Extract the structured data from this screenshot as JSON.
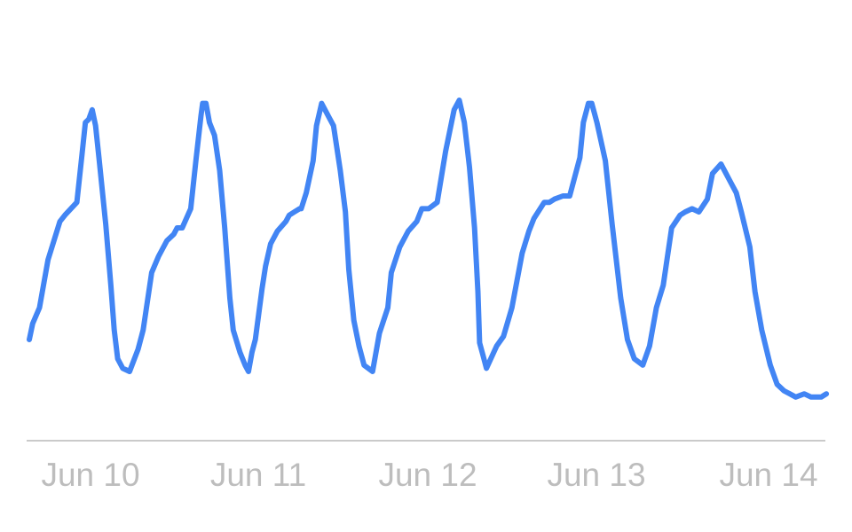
{
  "chart_data": {
    "type": "line",
    "title": "",
    "xlabel": "",
    "ylabel": "",
    "grid": false,
    "legend": "none",
    "x_ticks": [
      "Jun 10",
      "Jun 11",
      "Jun 12",
      "Jun 13",
      "Jun 14"
    ],
    "x_range": [
      0,
      4.7
    ],
    "y_range": [
      0,
      100
    ],
    "series": [
      {
        "color": "#4285f4",
        "x": [
          0.0,
          0.02,
          0.06,
          0.11,
          0.18,
          0.21,
          0.28,
          0.31,
          0.33,
          0.35,
          0.37,
          0.39,
          0.41,
          0.45,
          0.48,
          0.5,
          0.52,
          0.55,
          0.59,
          0.64,
          0.67,
          0.72,
          0.76,
          0.81,
          0.85,
          0.87,
          0.9,
          0.95,
          0.98,
          1.01,
          1.02,
          1.04,
          1.06,
          1.09,
          1.12,
          1.15,
          1.18,
          1.2,
          1.24,
          1.27,
          1.29,
          1.31,
          1.33,
          1.35,
          1.37,
          1.39,
          1.42,
          1.46,
          1.51,
          1.53,
          1.56,
          1.59,
          1.6,
          1.63,
          1.67,
          1.69,
          1.72,
          1.76,
          1.79,
          1.83,
          1.86,
          1.88,
          1.91,
          1.94,
          1.97,
          2.02,
          2.06,
          2.11,
          2.13,
          2.18,
          2.23,
          2.28,
          2.31,
          2.35,
          2.4,
          2.45,
          2.5,
          2.53,
          2.56,
          2.59,
          2.62,
          2.64,
          2.65,
          2.67,
          2.69,
          2.75,
          2.79,
          2.84,
          2.9,
          2.94,
          2.97,
          3.03,
          3.06,
          3.09,
          3.14,
          3.18,
          3.24,
          3.26,
          3.29,
          3.31,
          3.34,
          3.39,
          3.43,
          3.48,
          3.52,
          3.56,
          3.61,
          3.65,
          3.69,
          3.73,
          3.78,
          3.83,
          3.86,
          3.9,
          3.94,
          3.99,
          4.02,
          4.07,
          4.09,
          4.12,
          4.16,
          4.19,
          4.24,
          4.27,
          4.31,
          4.36,
          4.4,
          4.44,
          4.51,
          4.56,
          4.6,
          4.66,
          4.69
        ],
        "y": [
          20,
          25,
          30,
          45,
          57,
          59,
          63,
          78,
          88,
          89,
          92,
          87,
          77,
          56,
          37,
          23,
          14,
          11,
          10,
          17,
          23,
          41,
          46,
          51,
          53,
          55,
          55,
          61,
          76,
          90,
          94,
          94,
          88,
          84,
          73,
          55,
          33,
          23,
          16,
          12,
          10,
          16,
          20,
          28,
          36,
          43,
          50,
          54,
          57,
          59,
          60,
          61,
          61,
          66,
          76,
          87,
          94,
          90,
          87,
          73,
          60,
          42,
          26,
          18,
          12,
          10,
          22,
          30,
          41,
          49,
          54,
          57,
          61,
          61,
          63,
          79,
          92,
          95,
          88,
          74,
          55,
          35,
          19,
          15,
          11,
          18,
          21,
          30,
          47,
          54,
          58,
          63,
          63,
          64,
          65,
          65,
          77,
          88,
          94,
          94,
          88,
          76,
          56,
          33,
          20,
          14,
          12,
          18,
          30,
          37,
          55,
          59,
          60,
          61,
          60,
          64,
          72,
          75,
          73,
          70,
          66,
          60,
          49,
          35,
          23,
          12,
          6,
          4,
          2,
          3,
          2,
          2,
          3
        ]
      }
    ]
  }
}
